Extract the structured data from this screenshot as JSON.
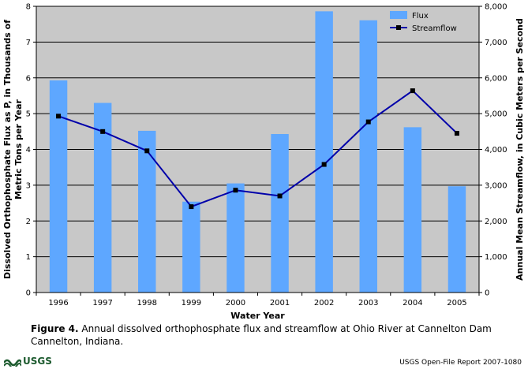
{
  "chart_data": {
    "type": "bar+line",
    "categories": [
      "1996",
      "1997",
      "1998",
      "1999",
      "2000",
      "2001",
      "2002",
      "2003",
      "2004",
      "2005"
    ],
    "series": [
      {
        "name": "Flux",
        "kind": "bar",
        "axis": "left",
        "color": "#5ea7ff",
        "values": [
          5.93,
          5.3,
          4.52,
          2.54,
          3.05,
          4.43,
          7.86,
          7.61,
          4.62,
          2.97
        ]
      },
      {
        "name": "Streamflow",
        "kind": "line",
        "axis": "right",
        "color": "#0000aa",
        "values": [
          4930,
          4500,
          3960,
          2400,
          2860,
          2700,
          3580,
          4770,
          5640,
          4450
        ]
      }
    ],
    "xlabel": "Water Year",
    "ylabel_left": "Dissolved Orthophosphate Flux as P, in Thousands of Metric Tons per Year",
    "ylabel_left_lines": [
      "Dissolved Orthophosphate Flux as P, in Thousands of",
      "Metric Tons per Year"
    ],
    "ylabel_right": "Annual Mean Streamflow, in Cubic Meters per Second",
    "ylim_left": [
      0,
      8
    ],
    "ylim_right": [
      0,
      8000
    ],
    "yticks_left": [
      "0",
      "1",
      "2",
      "3",
      "4",
      "5",
      "6",
      "7",
      "8"
    ],
    "yticks_right": [
      "0",
      "1,000",
      "2,000",
      "3,000",
      "4,000",
      "5,000",
      "6,000",
      "7,000",
      "8,000"
    ],
    "legend": {
      "position": "top-right",
      "items": [
        "Flux",
        "Streamflow"
      ]
    },
    "grid": true,
    "colors": {
      "plot_bg": "#c8c8c8",
      "grid": "#000000"
    }
  },
  "caption": {
    "label": "Figure 4.",
    "text": " Annual dissolved orthophosphate flux and streamflow at Ohio River at Cannelton Dam Cannelton, Indiana."
  },
  "footer": {
    "logo_text": "USGS",
    "report": "USGS Open-File Report 2007-1080"
  }
}
